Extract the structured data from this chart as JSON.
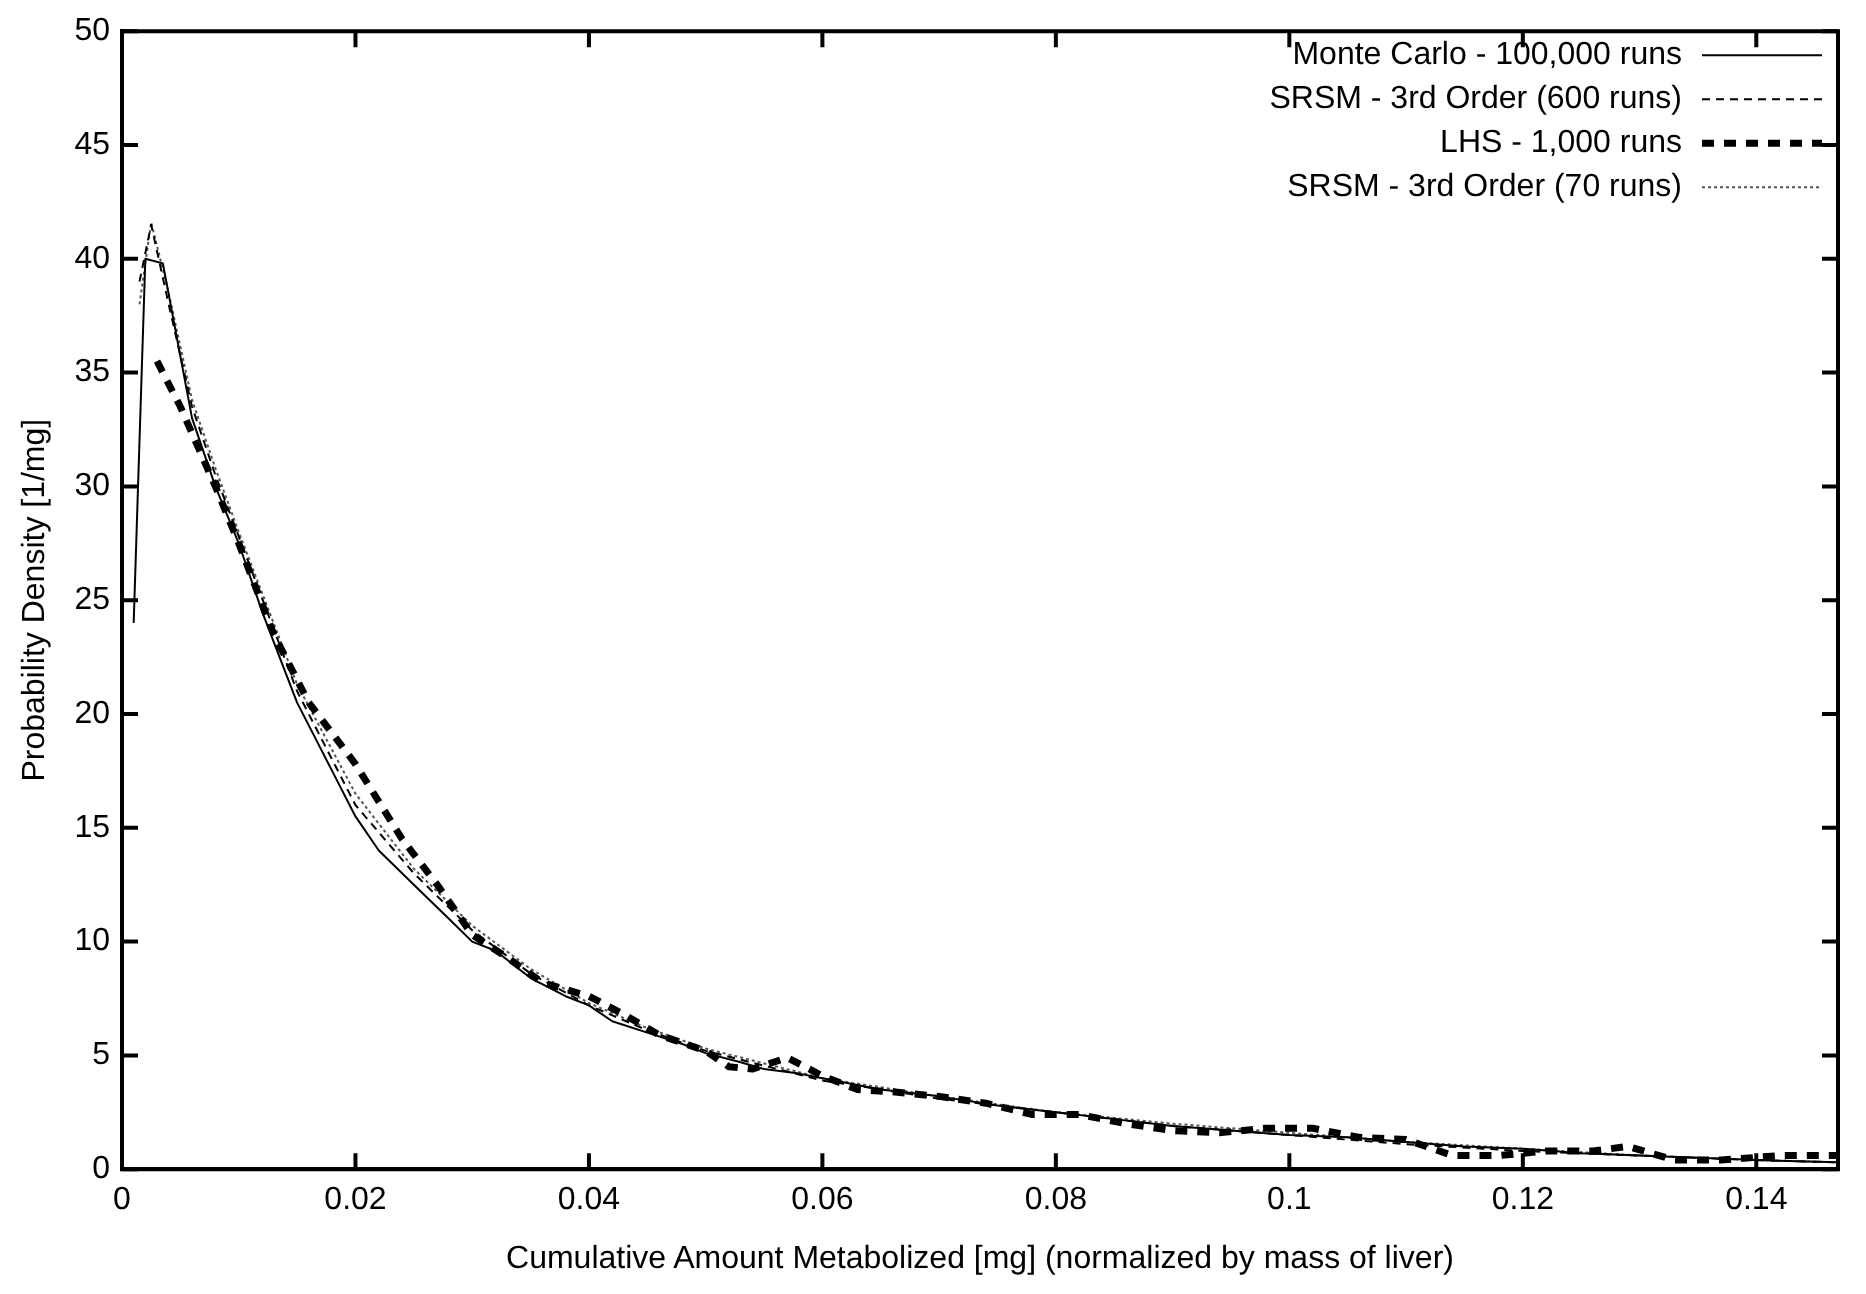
{
  "chart_data": {
    "type": "line",
    "xlabel": "Cumulative Amount Metabolized [mg] (normalized by mass of liver)",
    "ylabel": "Probability Density [1/mg]",
    "xlim": [
      0,
      0.147
    ],
    "ylim": [
      0,
      50
    ],
    "xticks": [
      0,
      0.02,
      0.04,
      0.06,
      0.08,
      0.1,
      0.12,
      0.14
    ],
    "yticks": [
      0,
      5,
      10,
      15,
      20,
      25,
      30,
      35,
      40,
      45,
      50
    ],
    "grid": false,
    "legend": "top right",
    "marker": "none",
    "series": [
      {
        "name": "Monte Carlo - 100,000 runs",
        "color": "#000000",
        "line_style": "solid",
        "x": [
          0.001,
          0.002,
          0.0035,
          0.006,
          0.008,
          0.01,
          0.012,
          0.015,
          0.018,
          0.02,
          0.022,
          0.025,
          0.028,
          0.03,
          0.032,
          0.035,
          0.038,
          0.04,
          0.042,
          0.045,
          0.048,
          0.05,
          0.053,
          0.055,
          0.058,
          0.06,
          0.065,
          0.07,
          0.075,
          0.08,
          0.085,
          0.09,
          0.095,
          0.1,
          0.105,
          0.11,
          0.115,
          0.12,
          0.125,
          0.13,
          0.135,
          0.14,
          0.147
        ],
        "values": [
          24,
          40,
          39.8,
          33,
          30,
          27.5,
          24.5,
          20.5,
          17.5,
          15.5,
          14,
          12.5,
          11,
          10,
          9.6,
          8.4,
          7.6,
          7.2,
          6.5,
          6,
          5.5,
          5.1,
          4.7,
          4.4,
          4.2,
          4,
          3.5,
          3.2,
          2.8,
          2.5,
          2.2,
          1.9,
          1.7,
          1.5,
          1.4,
          1.2,
          1.0,
          0.9,
          0.7,
          0.6,
          0.5,
          0.4,
          0.3
        ]
      },
      {
        "name": "SRSM - 3rd Order (600 runs)",
        "color": "#000000",
        "line_style": "dashed",
        "x": [
          0.0015,
          0.0025,
          0.004,
          0.006,
          0.008,
          0.01,
          0.015,
          0.02,
          0.025,
          0.03,
          0.035,
          0.04,
          0.045,
          0.05,
          0.06,
          0.07,
          0.08,
          0.09,
          0.1,
          0.11,
          0.12,
          0.13,
          0.14,
          0.147
        ],
        "values": [
          39,
          41.5,
          38,
          33.5,
          30.5,
          27.8,
          21,
          16,
          13,
          10.5,
          8.6,
          7.2,
          6.1,
          5.2,
          3.9,
          3.1,
          2.5,
          1.9,
          1.5,
          1.1,
          0.8,
          0.6,
          0.4,
          0.3
        ]
      },
      {
        "name": "LHS - 1,000 runs",
        "color": "#000000",
        "line_style": "dotted",
        "x": [
          0.003,
          0.005,
          0.008,
          0.01,
          0.013,
          0.016,
          0.02,
          0.024,
          0.027,
          0.03,
          0.033,
          0.036,
          0.04,
          0.043,
          0.046,
          0.05,
          0.052,
          0.054,
          0.057,
          0.06,
          0.063,
          0.066,
          0.07,
          0.074,
          0.078,
          0.082,
          0.086,
          0.09,
          0.094,
          0.098,
          0.102,
          0.106,
          0.11,
          0.114,
          0.118,
          0.122,
          0.126,
          0.129,
          0.133,
          0.137,
          0.142,
          0.147
        ],
        "values": [
          35.5,
          33.5,
          30,
          27.5,
          23.5,
          20.5,
          17.8,
          14.5,
          12.5,
          10.3,
          9.3,
          8.2,
          7.6,
          6.8,
          5.9,
          5.2,
          4.5,
          4.4,
          4.9,
          4.1,
          3.5,
          3.4,
          3.2,
          2.9,
          2.4,
          2.4,
          2.0,
          1.7,
          1.6,
          1.8,
          1.8,
          1.4,
          1.3,
          0.6,
          0.6,
          0.8,
          0.8,
          1.0,
          0.4,
          0.4,
          0.6,
          0.6
        ]
      },
      {
        "name": "SRSM - 3rd Order (70 runs)",
        "color": "#555555",
        "line_style": "dotted",
        "x": [
          0.0015,
          0.0025,
          0.004,
          0.006,
          0.008,
          0.01,
          0.015,
          0.02,
          0.025,
          0.03,
          0.035,
          0.04,
          0.045,
          0.05,
          0.06,
          0.07,
          0.08,
          0.09,
          0.1,
          0.11,
          0.12,
          0.13,
          0.14,
          0.147
        ],
        "values": [
          38,
          41.6,
          38.5,
          33.8,
          30.8,
          28,
          21.3,
          16.5,
          13.2,
          10.7,
          8.8,
          7.3,
          6.2,
          5.3,
          4.0,
          3.2,
          2.5,
          2.0,
          1.6,
          1.2,
          0.9,
          0.6,
          0.4,
          0.3
        ]
      }
    ]
  }
}
